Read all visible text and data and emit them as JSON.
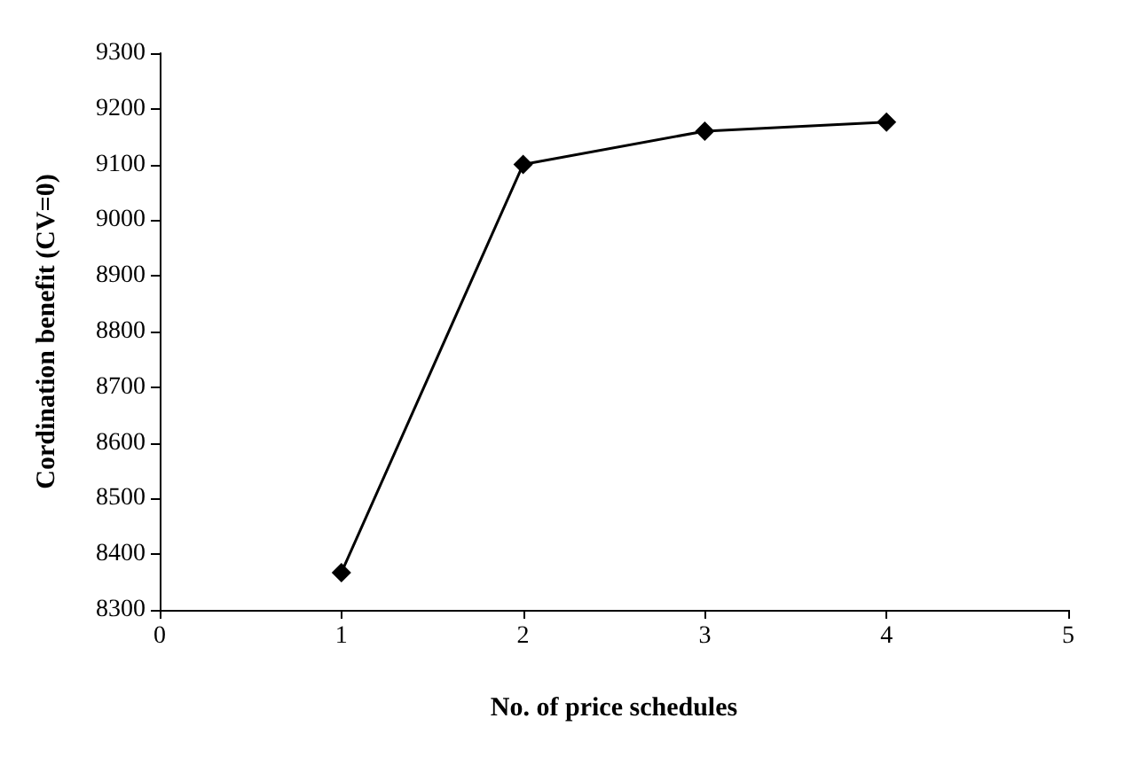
{
  "chart_data": {
    "type": "line",
    "xlabel": "No. of price schedules",
    "ylabel": "Cordination benefit (CV=0)",
    "x": [
      1,
      2,
      3,
      4
    ],
    "series": [
      {
        "color": "#000000",
        "values": [
          8367,
          9100,
          9160,
          9176
        ]
      }
    ],
    "xlim": [
      0,
      5
    ],
    "xticks": [
      0,
      1,
      2,
      3,
      4,
      5
    ],
    "ylim": [
      8300,
      9300
    ],
    "yticks": [
      8300,
      8400,
      8500,
      8600,
      8700,
      8800,
      8900,
      9000,
      9100,
      9200,
      9300
    ],
    "grid": false,
    "marker": "diamond",
    "line_style": "solid"
  }
}
